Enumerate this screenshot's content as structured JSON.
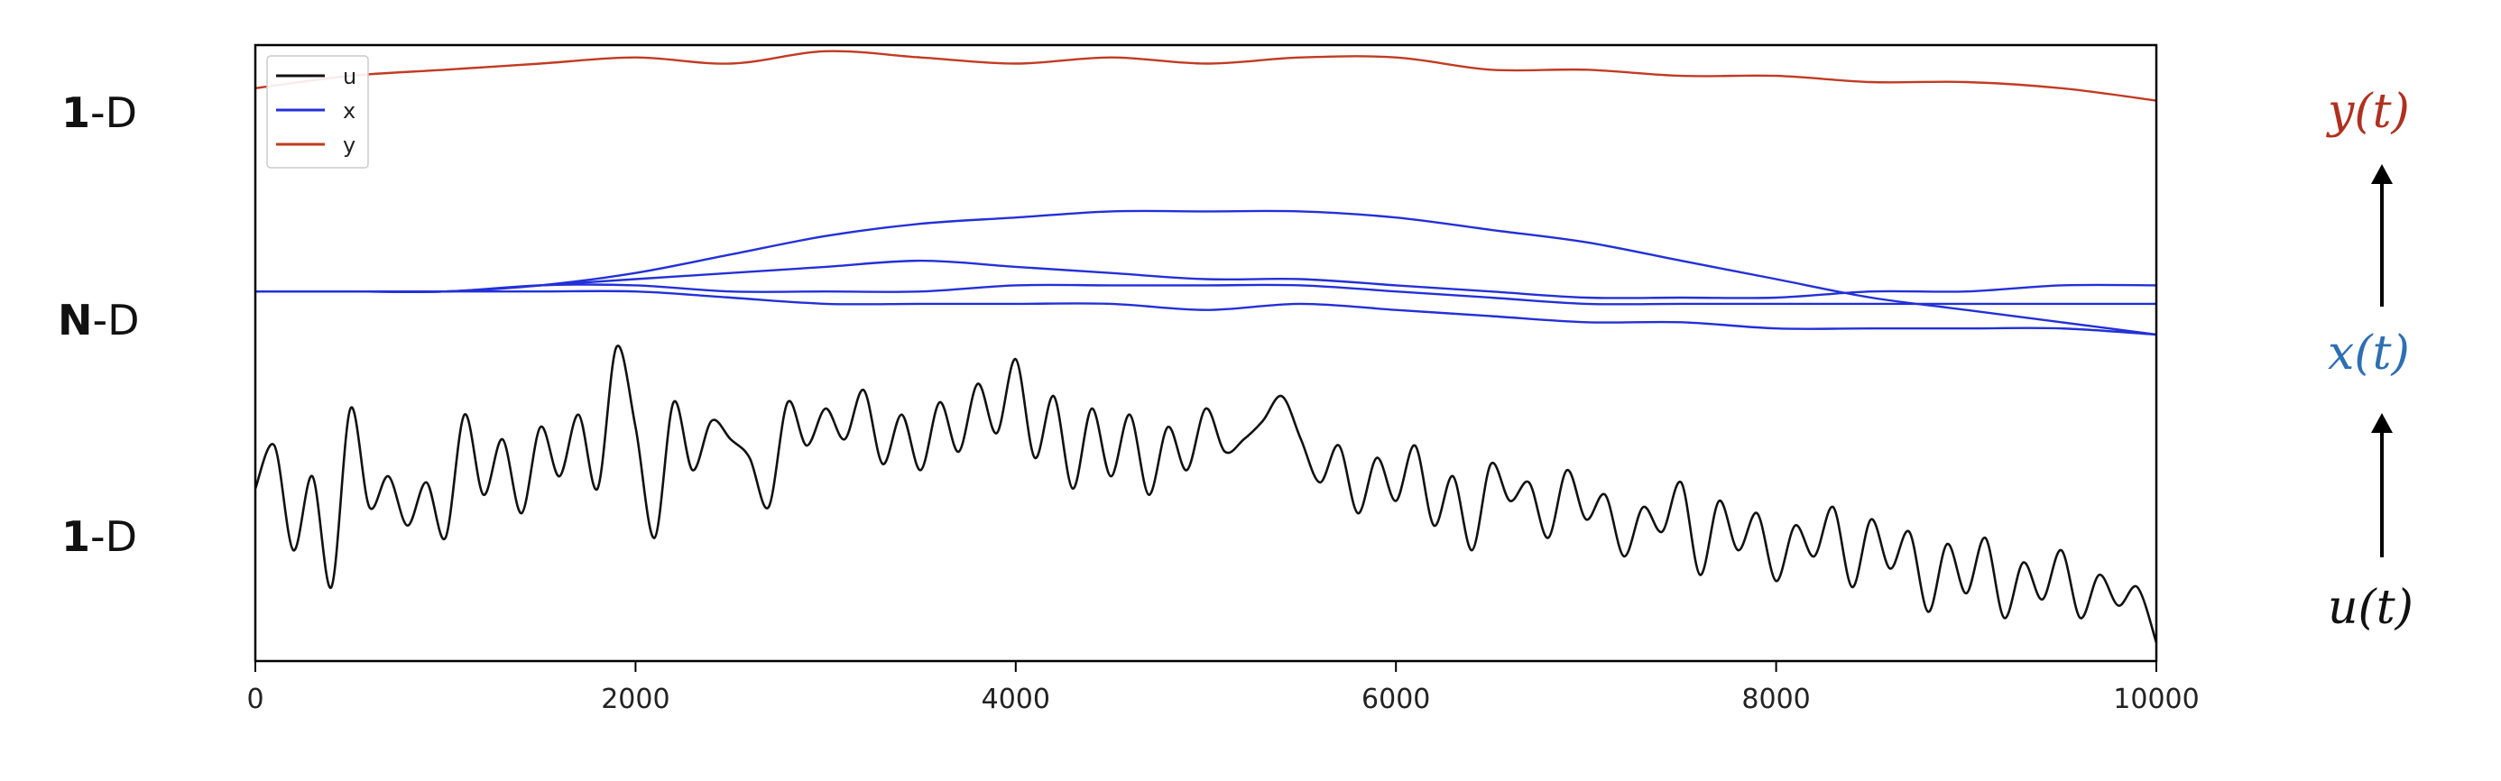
{
  "left_labels": {
    "top": {
      "bold": "1",
      "rest": "-D"
    },
    "middle": {
      "bold": "N",
      "rest": "-D"
    },
    "bottom": {
      "bold": "1",
      "rest": "-D"
    }
  },
  "right_labels": {
    "y": {
      "text": "y(t)",
      "color": "#b0301f"
    },
    "x": {
      "text": "x(t)",
      "color": "#2e6fb3"
    },
    "u": {
      "text": "u(t)",
      "color": "#111111"
    }
  },
  "chart_data": {
    "type": "line",
    "xlim": [
      0,
      10000
    ],
    "x_ticks": [
      0,
      2000,
      4000,
      6000,
      8000,
      10000
    ],
    "x_tick_labels": [
      "0",
      "2000",
      "4000",
      "6000",
      "8000",
      "10000"
    ],
    "y_ticks_shown": false,
    "legend": {
      "placement": "top-left",
      "entries": [
        "u",
        "x",
        "y"
      ]
    },
    "series": [
      {
        "name": "y",
        "color": "#c23b22",
        "x": [
          0,
          500,
          1000,
          1500,
          2000,
          2500,
          3000,
          3500,
          4000,
          4500,
          5000,
          5500,
          6000,
          6500,
          7000,
          7500,
          8000,
          8500,
          9000,
          9500,
          10000
        ],
        "y": [
          0.93,
          0.95,
          0.96,
          0.97,
          0.98,
          0.97,
          0.99,
          0.98,
          0.97,
          0.98,
          0.97,
          0.98,
          0.98,
          0.96,
          0.96,
          0.95,
          0.95,
          0.94,
          0.94,
          0.93,
          0.91
        ]
      },
      {
        "name": "x",
        "color": "#2330d8",
        "x": [
          0,
          500,
          1000,
          1500,
          2000,
          2500,
          3000,
          3500,
          4000,
          4500,
          5000,
          5500,
          6000,
          6500,
          7000,
          7500,
          8000,
          8500,
          9000,
          9500,
          10000
        ],
        "y": [
          0.6,
          0.6,
          0.6,
          0.61,
          0.63,
          0.66,
          0.69,
          0.71,
          0.72,
          0.73,
          0.73,
          0.73,
          0.72,
          0.7,
          0.68,
          0.65,
          0.62,
          0.59,
          0.57,
          0.55,
          0.53
        ]
      },
      {
        "name": "x",
        "color": "#2330d8",
        "x": [
          0,
          500,
          1000,
          1500,
          2000,
          2500,
          3000,
          3500,
          4000,
          4500,
          5000,
          5500,
          6000,
          6500,
          7000,
          7500,
          8000,
          8500,
          9000,
          9500,
          10000
        ],
        "y": [
          0.6,
          0.6,
          0.6,
          0.61,
          0.62,
          0.63,
          0.64,
          0.65,
          0.64,
          0.63,
          0.62,
          0.62,
          0.61,
          0.6,
          0.59,
          0.59,
          0.59,
          0.6,
          0.6,
          0.61,
          0.61
        ]
      },
      {
        "name": "x",
        "color": "#2330d8",
        "x": [
          0,
          500,
          1000,
          1500,
          2000,
          2500,
          3000,
          3500,
          4000,
          4500,
          5000,
          5500,
          6000,
          6500,
          7000,
          7500,
          8000,
          8500,
          9000,
          9500,
          10000
        ],
        "y": [
          0.6,
          0.6,
          0.6,
          0.61,
          0.61,
          0.6,
          0.6,
          0.6,
          0.61,
          0.61,
          0.61,
          0.61,
          0.6,
          0.59,
          0.58,
          0.58,
          0.58,
          0.58,
          0.58,
          0.58,
          0.58
        ]
      },
      {
        "name": "x",
        "color": "#2330d8",
        "x": [
          0,
          500,
          1000,
          1500,
          2000,
          2500,
          3000,
          3500,
          4000,
          4500,
          5000,
          5500,
          6000,
          6500,
          7000,
          7500,
          8000,
          8500,
          9000,
          9500,
          10000
        ],
        "y": [
          0.6,
          0.6,
          0.6,
          0.6,
          0.6,
          0.59,
          0.58,
          0.58,
          0.58,
          0.58,
          0.57,
          0.58,
          0.57,
          0.56,
          0.55,
          0.55,
          0.54,
          0.54,
          0.54,
          0.54,
          0.53
        ]
      },
      {
        "name": "u",
        "color": "#111111",
        "x": [
          0,
          100,
          200,
          300,
          400,
          500,
          600,
          700,
          800,
          900,
          1000,
          1100,
          1200,
          1300,
          1400,
          1500,
          1600,
          1700,
          1800,
          1900,
          2000,
          2100,
          2200,
          2300,
          2400,
          2500,
          2600,
          2700,
          2800,
          2900,
          3000,
          3100,
          3200,
          3300,
          3400,
          3500,
          3600,
          3700,
          3800,
          3900,
          4000,
          4100,
          4200,
          4300,
          4400,
          4500,
          4600,
          4700,
          4800,
          4900,
          5000,
          5100,
          5200,
          5300,
          5400,
          5500,
          5600,
          5700,
          5800,
          5900,
          6000,
          6100,
          6200,
          6300,
          6400,
          6500,
          6600,
          6700,
          6800,
          6900,
          7000,
          7100,
          7200,
          7300,
          7400,
          7500,
          7600,
          7700,
          7800,
          7900,
          8000,
          8100,
          8200,
          8300,
          8400,
          8500,
          8600,
          8700,
          8800,
          8900,
          9000,
          9100,
          9200,
          9300,
          9400,
          9500,
          9600,
          9700,
          9800,
          9900,
          10000
        ],
        "y": [
          0.28,
          0.35,
          0.18,
          0.3,
          0.12,
          0.41,
          0.25,
          0.3,
          0.22,
          0.29,
          0.2,
          0.4,
          0.27,
          0.36,
          0.24,
          0.38,
          0.3,
          0.4,
          0.28,
          0.51,
          0.38,
          0.2,
          0.42,
          0.31,
          0.39,
          0.36,
          0.33,
          0.25,
          0.42,
          0.35,
          0.41,
          0.36,
          0.44,
          0.32,
          0.4,
          0.31,
          0.42,
          0.34,
          0.45,
          0.37,
          0.49,
          0.33,
          0.43,
          0.28,
          0.41,
          0.3,
          0.4,
          0.27,
          0.38,
          0.31,
          0.41,
          0.34,
          0.36,
          0.39,
          0.43,
          0.36,
          0.29,
          0.35,
          0.24,
          0.33,
          0.26,
          0.35,
          0.22,
          0.3,
          0.18,
          0.32,
          0.26,
          0.29,
          0.2,
          0.31,
          0.23,
          0.27,
          0.17,
          0.25,
          0.21,
          0.29,
          0.14,
          0.26,
          0.18,
          0.24,
          0.13,
          0.22,
          0.17,
          0.25,
          0.12,
          0.23,
          0.15,
          0.21,
          0.08,
          0.19,
          0.11,
          0.2,
          0.07,
          0.16,
          0.1,
          0.18,
          0.07,
          0.14,
          0.09,
          0.12,
          0.03
        ]
      }
    ]
  }
}
